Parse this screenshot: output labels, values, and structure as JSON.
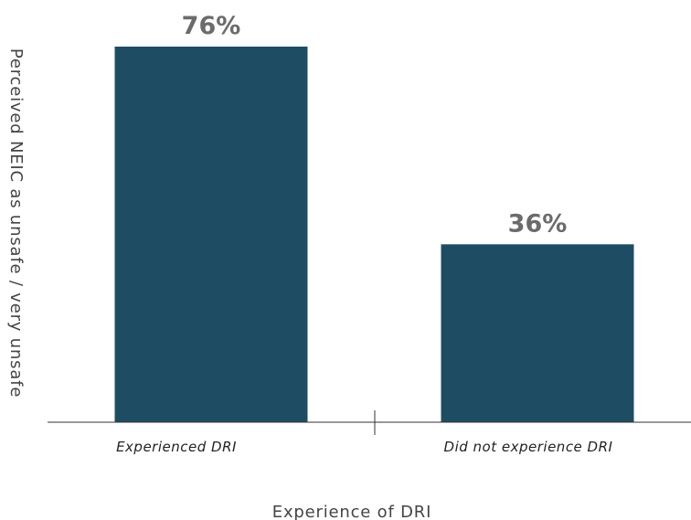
{
  "chart_data": {
    "type": "bar",
    "categories": [
      "Experienced DRI",
      "Did not experience DRI"
    ],
    "values": [
      76,
      36
    ],
    "value_labels": [
      "76%",
      "36%"
    ],
    "xlabel": "Experience of DRI",
    "ylabel": "Perceived NEIC as unsafe / very unsafe",
    "ylim": [
      0,
      100
    ],
    "grid": false,
    "bar_color": "#1e4d63",
    "value_label_color": "#6b6b6b"
  }
}
